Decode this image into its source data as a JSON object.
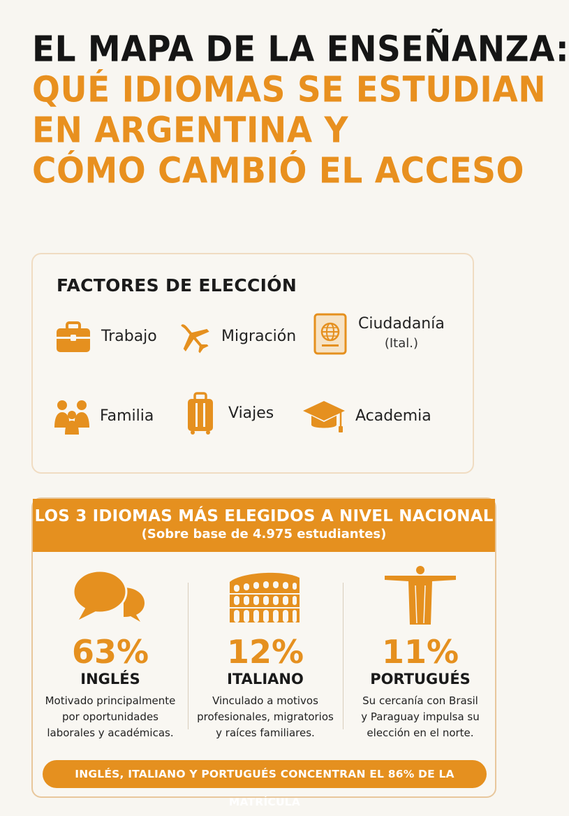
{
  "title": {
    "line1": "EL MAPA DE LA ENSEÑANZA:",
    "line2": "QUÉ IDIOMAS SE ESTUDIAN",
    "line3": "EN ARGENTINA Y",
    "line4": "CÓMO CAMBIÓ EL ACCESO"
  },
  "factors": {
    "title": "FACTORES DE ELECCIÓN",
    "items": [
      {
        "label": "Trabajo",
        "icon": "briefcase-icon"
      },
      {
        "label": "Migración",
        "icon": "airplane-icon"
      },
      {
        "label": "Ciudadanía",
        "sub": "(Ital.)",
        "icon": "passport-icon"
      },
      {
        "label": "Familia",
        "icon": "family-icon"
      },
      {
        "label": "Viajes",
        "icon": "suitcase-icon"
      },
      {
        "label": "Academia",
        "icon": "graduation-cap-icon"
      }
    ]
  },
  "top3": {
    "title": "LOS 3 IDIOMAS MÁS ELEGIDOS A NIVEL NACIONAL",
    "subtitle": "(Sobre base de 4.975 estudiantes)",
    "languages": [
      {
        "pct": "63%",
        "value": 63,
        "name": "INGLÉS",
        "icon": "speech-bubbles-icon",
        "desc": [
          "Motivado principalmente",
          "por oportunidades",
          "laborales y académicas."
        ]
      },
      {
        "pct": "12%",
        "value": 12,
        "name": "ITALIANO",
        "icon": "colosseum-icon",
        "desc": [
          "Vinculado a motivos",
          "profesionales, migratorios",
          "y raíces familiares."
        ]
      },
      {
        "pct": "11%",
        "value": 11,
        "name": "PORTUGUÉS",
        "icon": "christ-redeemer-icon",
        "desc": [
          "Su cercanía con Brasil",
          "y Paraguay impulsa su",
          "elección en el norte."
        ]
      }
    ],
    "footer": "INGLÉS, ITALIANO Y PORTUGUÉS CONCENTRAN EL 86% DE LA MATRÍCULA"
  },
  "colors": {
    "accent": "#e5901f",
    "text": "#1a1a1a",
    "background": "#f8f6f1"
  }
}
